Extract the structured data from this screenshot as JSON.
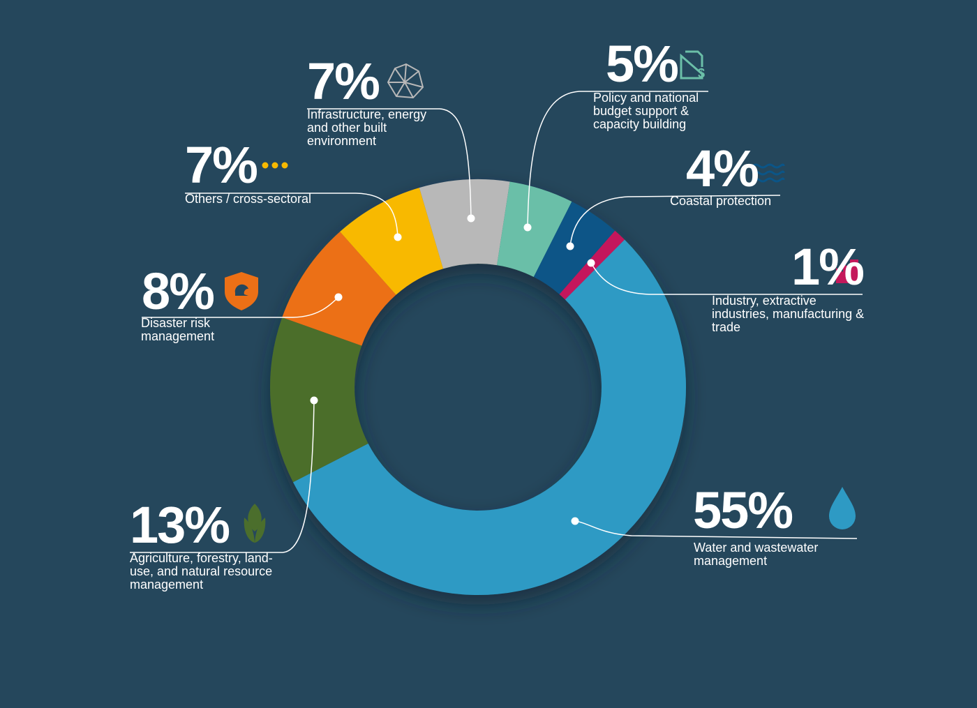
{
  "chart_data": {
    "type": "donut",
    "categories": [
      "Water and wastewater management",
      "Agriculture, forestry, land-use, and natural resource management",
      "Disaster risk management",
      "Others / cross-sectoral",
      "Infrastructure, energy and other built environment",
      "Policy and national budget support & capacity building",
      "Coastal protection",
      "Industry, extractive industries, manufacturing & trade"
    ],
    "values": [
      55,
      13,
      8,
      7,
      7,
      5,
      4,
      1
    ],
    "value_labels": [
      "55%",
      "13%",
      "8%",
      "7%",
      "7%",
      "5%",
      "4%",
      "1%"
    ],
    "colors": [
      "#2e9ac4",
      "#4b6e2c",
      "#ec7016",
      "#f8b900",
      "#b8b8b8",
      "#6bbfa8",
      "#0b5587",
      "#c4195b"
    ]
  }
}
